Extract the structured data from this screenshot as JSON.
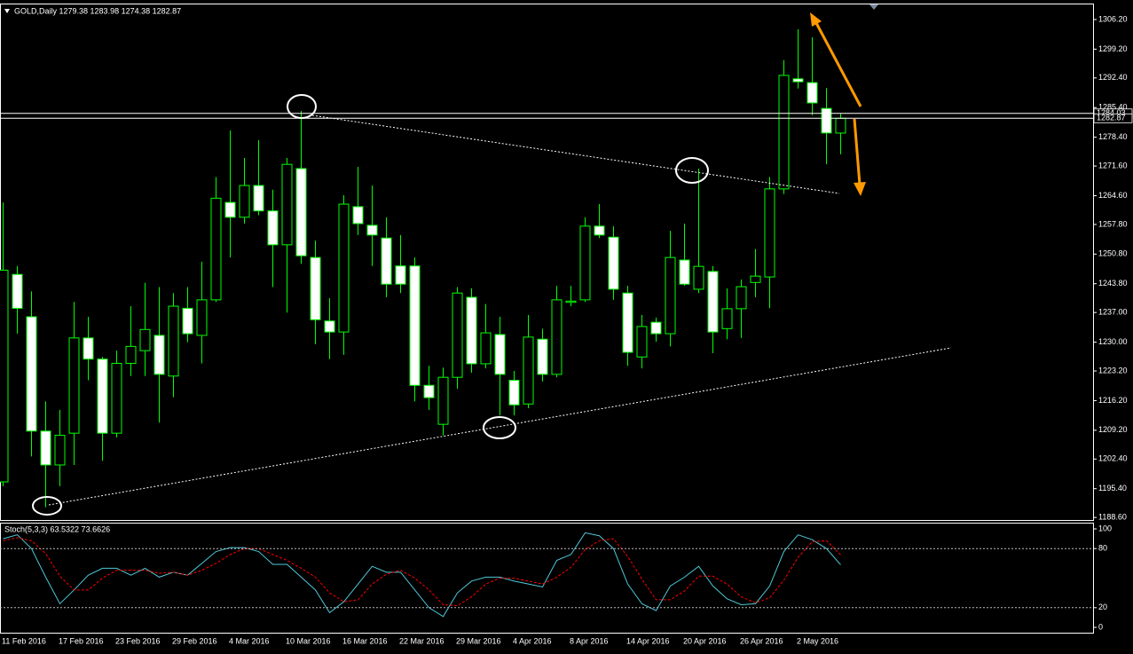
{
  "chart_data": [
    {
      "type": "candlestick",
      "title": "GOLD,Daily  1279.38 1283.98 1274.38 1282.87",
      "categories": [
        "11 Feb 2016",
        null,
        null,
        null,
        "17 Feb 2016",
        null,
        null,
        null,
        "23 Feb 2016",
        null,
        null,
        null,
        "29 Feb 2016",
        null,
        null,
        null,
        "4 Mar 2016",
        null,
        null,
        null,
        "10 Mar 2016",
        null,
        null,
        null,
        "16 Mar 2016",
        null,
        null,
        null,
        "22 Mar 2016",
        null,
        null,
        null,
        "29 Mar 2016",
        null,
        null,
        null,
        "4 Apr 2016",
        null,
        null,
        null,
        "8 Apr 2016",
        null,
        null,
        null,
        "14 Apr 2016",
        null,
        null,
        null,
        "20 Apr 2016",
        null,
        null,
        null,
        "26 Apr 2016",
        null,
        null,
        null,
        "2 May 2016",
        null,
        null,
        null
      ],
      "open": [
        1197,
        1246,
        1236,
        1209,
        1201,
        1208.5,
        1231,
        1226,
        1208.5,
        1225,
        1228,
        1231.6,
        1222,
        1238,
        1231.6,
        1240,
        1263,
        1259.5,
        1267,
        1261,
        1253,
        1271,
        1250,
        1235,
        1232.4,
        1262,
        1257.6,
        1254.6,
        1248,
        1248,
        1219.8,
        1210.6,
        1221.7,
        1240.6,
        1224.9,
        1231.8,
        1221,
        1215.4,
        1230.7,
        1222.4,
        1239.4,
        1240,
        1257.4,
        1254.8,
        1241.6,
        1226.5,
        1234.7,
        1232,
        1249.4,
        1242.5,
        1246.7,
        1233.2,
        1237.9,
        1244.1,
        1245.4,
        1266.2,
        1292.2,
        1291.3,
        1285.2,
        1279.38
      ],
      "high": [
        1263,
        1248,
        1242,
        1216,
        1214,
        1239.5,
        1236,
        1226.5,
        1228,
        1238.5,
        1244,
        1243,
        1241.6,
        1243,
        1249,
        1269,
        1280,
        1273.5,
        1277.7,
        1266,
        1273.5,
        1284.6,
        1254,
        1240.4,
        1264.7,
        1271.4,
        1267,
        1259.5,
        1255.3,
        1250,
        1224.4,
        1224,
        1243,
        1242.7,
        1239,
        1236,
        1223.2,
        1236.4,
        1233.2,
        1243.3,
        1243.3,
        1259.5,
        1262.6,
        1257.4,
        1243.3,
        1236.4,
        1235.8,
        1256.3,
        1258,
        1271,
        1248,
        1242.7,
        1244.8,
        1252,
        1269,
        1296.6,
        1303.9,
        1302,
        1290,
        1283.98
      ],
      "low": [
        1196,
        1232,
        1203,
        1191,
        1196,
        1201,
        1221,
        1202,
        1207.5,
        1222,
        1222,
        1211,
        1217,
        1230,
        1225,
        1239.5,
        1250,
        1258,
        1260,
        1243,
        1237,
        1248.5,
        1229.5,
        1226,
        1227,
        1255.3,
        1248,
        1240.6,
        1241.6,
        1216,
        1214,
        1208,
        1219,
        1222.8,
        1223.8,
        1212.7,
        1212.7,
        1214.4,
        1220.7,
        1221.7,
        1238.5,
        1239.5,
        1254.6,
        1240,
        1224.4,
        1223.8,
        1230.1,
        1229,
        1243.3,
        1241.6,
        1227.4,
        1230.7,
        1231,
        1240.6,
        1238,
        1265,
        1289.9,
        1283.6,
        1272,
        1274.38
      ],
      "close": [
        1247,
        1238,
        1209,
        1201,
        1208,
        1231,
        1226,
        1208.5,
        1225,
        1229,
        1233,
        1222.4,
        1238.5,
        1232,
        1240,
        1264,
        1259.5,
        1267,
        1261,
        1253,
        1272,
        1250.4,
        1235.3,
        1232.4,
        1262.6,
        1258,
        1255.3,
        1243.7,
        1243.7,
        1219.8,
        1216.9,
        1221.7,
        1241.6,
        1224.9,
        1232.2,
        1222.4,
        1215.2,
        1231.2,
        1222.4,
        1240,
        1239.7,
        1257.4,
        1255.3,
        1242.5,
        1227.6,
        1233.7,
        1232,
        1250,
        1243.7,
        1247.9,
        1232.4,
        1237.9,
        1243.1,
        1245.6,
        1266.2,
        1293,
        1291.5,
        1286.5,
        1279.4,
        1282.87
      ],
      "up_color": "#000000",
      "down_color": "#ffffff",
      "wick_color": "#00ff00",
      "ylim": [
        1188.0,
        1309.76
      ],
      "yticks": [
        {
          "value": 1306.2,
          "label": "1306.20"
        },
        {
          "value": 1299.2,
          "label": "1299.20"
        },
        {
          "value": 1292.4,
          "label": "1292.40"
        },
        {
          "value": 1285.4,
          "label": "1285.40"
        },
        {
          "value": 1278.4,
          "label": "1278.40"
        },
        {
          "value": 1271.6,
          "label": "1271.60"
        },
        {
          "value": 1264.6,
          "label": "1264.60"
        },
        {
          "value": 1257.8,
          "label": "1257.80"
        },
        {
          "value": 1250.8,
          "label": "1250.80"
        },
        {
          "value": 1243.8,
          "label": "1243.80"
        },
        {
          "value": 1237.0,
          "label": "1237.00"
        },
        {
          "value": 1230.0,
          "label": "1230.00"
        },
        {
          "value": 1223.2,
          "label": "1223.20"
        },
        {
          "value": 1216.2,
          "label": "1216.20"
        },
        {
          "value": 1209.2,
          "label": "1209.20"
        },
        {
          "value": 1202.4,
          "label": "1202.40"
        },
        {
          "value": 1195.4,
          "label": "1195.40"
        },
        {
          "value": 1188.6,
          "label": "1188.60"
        }
      ],
      "hlines": [
        1284.03,
        1282.87
      ]
    },
    {
      "type": "line",
      "title": "Stoch(5,3,3) 63.5322 73.6626",
      "ylim": [
        -5.4,
        106.3
      ],
      "yticks": [
        100,
        80,
        20,
        0
      ],
      "levels": [
        80,
        20
      ],
      "series": [
        {
          "color": "#4fc8d8",
          "style": "solid",
          "values": [
            90,
            94,
            80,
            51,
            24,
            38,
            53,
            60,
            60,
            53,
            60,
            51,
            56,
            53,
            65,
            77,
            81,
            81,
            77,
            64,
            64,
            51,
            38,
            15,
            26,
            44,
            62,
            56,
            56,
            38,
            20,
            11,
            35,
            47,
            51,
            51,
            47,
            44,
            41,
            68,
            74,
            96,
            93,
            80,
            44,
            24,
            17,
            42,
            51,
            62,
            42,
            29,
            23,
            24,
            42,
            77,
            94,
            89,
            80,
            63.5322
          ]
        },
        {
          "color": "#ff0000",
          "style": "dashed",
          "values": [
            88,
            91,
            88,
            75,
            52,
            38,
            38,
            50,
            58,
            58,
            58,
            55,
            56,
            53,
            58,
            65,
            74,
            80,
            80,
            74,
            68,
            60,
            51,
            35,
            26,
            28,
            44,
            54,
            58,
            50,
            38,
            23,
            22,
            31,
            44,
            50,
            50,
            47,
            44,
            51,
            61,
            79,
            88,
            90,
            72,
            49,
            28,
            28,
            37,
            52,
            52,
            44,
            31,
            25,
            30,
            48,
            71,
            87,
            88,
            73.6626
          ]
        }
      ]
    }
  ]
}
